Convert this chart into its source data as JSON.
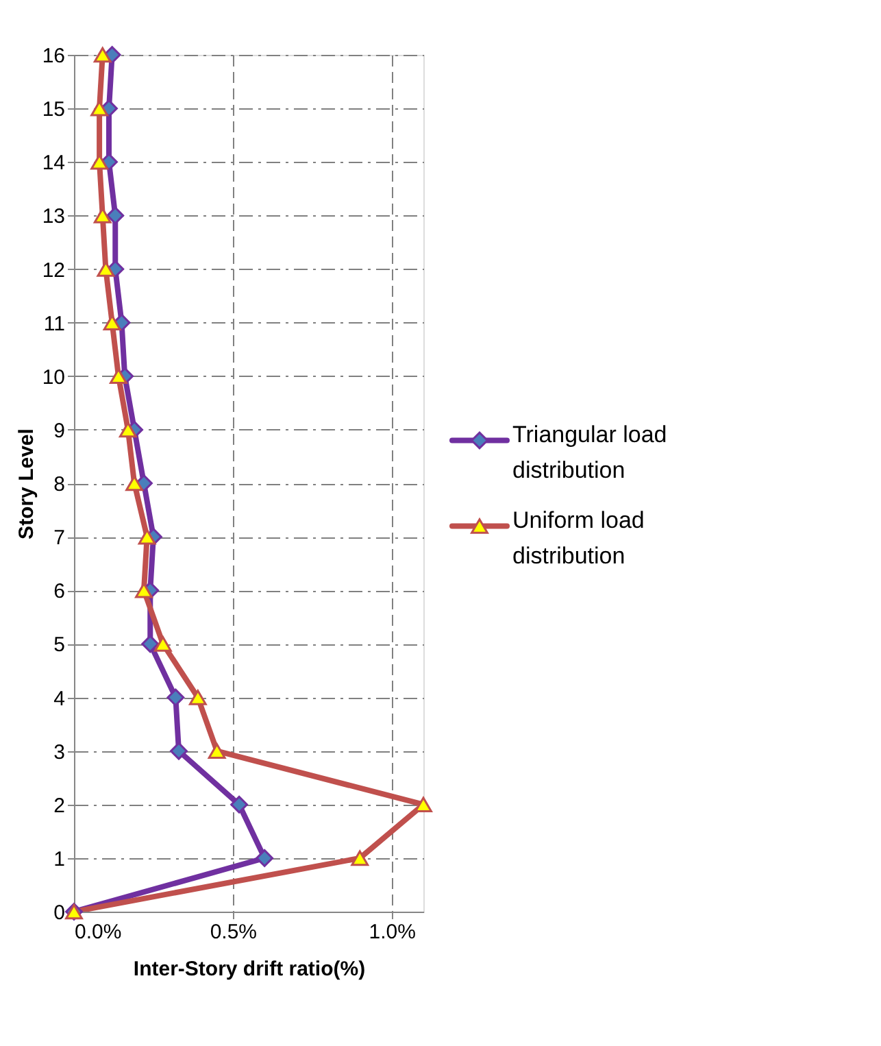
{
  "chart_data": {
    "type": "line",
    "xlabel": "Inter-Story drift ratio(%)",
    "ylabel": "Story Level",
    "xlim": [
      0,
      1.1
    ],
    "ylim": [
      0,
      16
    ],
    "xticks": [
      {
        "value": 0,
        "label": "0.0%"
      },
      {
        "value": 0.5,
        "label": "0.5%"
      },
      {
        "value": 1.0,
        "label": "1.0%"
      }
    ],
    "yticks": [
      0,
      1,
      2,
      3,
      4,
      5,
      6,
      7,
      8,
      9,
      10,
      11,
      12,
      13,
      14,
      15,
      16
    ],
    "grid": true,
    "legend": "right",
    "line_style": "solid",
    "series": [
      {
        "name": "Triangular load distribution",
        "color": "#7030a0",
        "marker": "diamond",
        "x": [
          0,
          0.6,
          0.52,
          0.33,
          0.32,
          0.24,
          0.24,
          0.25,
          0.22,
          0.19,
          0.16,
          0.15,
          0.13,
          0.13,
          0.11,
          0.11,
          0.12
        ],
        "values": [
          0,
          1,
          2,
          3,
          4,
          5,
          6,
          7,
          8,
          9,
          10,
          11,
          12,
          13,
          14,
          15,
          16
        ]
      },
      {
        "name": "Uniform load distribution",
        "color": "#c0504d",
        "marker": "triangle",
        "x": [
          0,
          0.9,
          1.1,
          0.45,
          0.39,
          0.28,
          0.22,
          0.23,
          0.19,
          0.17,
          0.14,
          0.12,
          0.1,
          0.09,
          0.08,
          0.08,
          0.09
        ],
        "values": [
          0,
          1,
          2,
          3,
          4,
          5,
          6,
          7,
          8,
          9,
          10,
          11,
          12,
          13,
          14,
          15,
          16
        ]
      }
    ]
  }
}
